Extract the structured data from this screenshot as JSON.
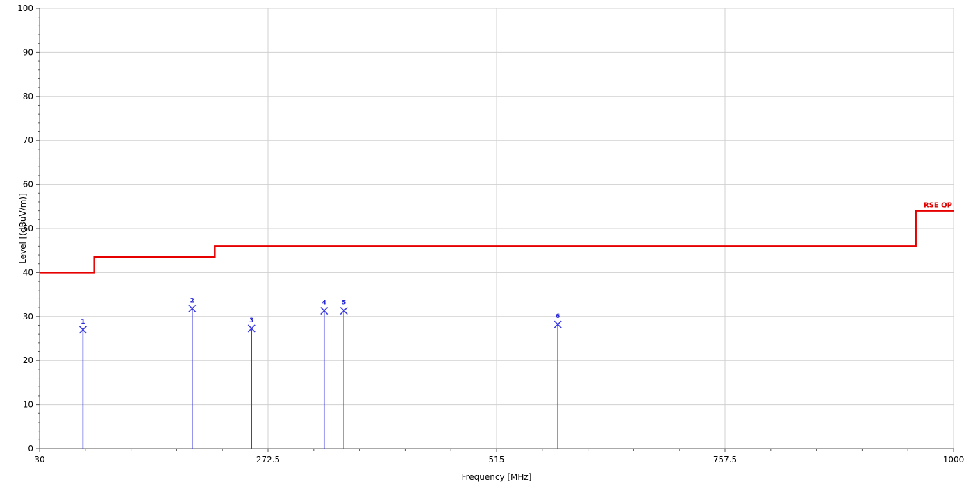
{
  "chart_data": {
    "type": "line",
    "title": "",
    "xlabel": "Frequency [MHz]",
    "ylabel": "Level [(dBuV/m)]",
    "xlim": [
      30,
      1000
    ],
    "ylim": [
      0,
      100
    ],
    "x_ticks": [
      30,
      272.5,
      515,
      757.5,
      1000
    ],
    "x_tick_labels": [
      "30",
      "272.5",
      "515",
      "757.5",
      "1000"
    ],
    "y_ticks": [
      0,
      10,
      20,
      30,
      40,
      50,
      60,
      70,
      80,
      90,
      100
    ],
    "y_tick_labels": [
      "0",
      "10",
      "20",
      "30",
      "40",
      "50",
      "60",
      "70",
      "80",
      "90",
      "100"
    ],
    "grid": true,
    "limit_line": {
      "name": "RSE QP",
      "color": "#e60000",
      "points": [
        [
          30,
          40
        ],
        [
          88,
          40
        ],
        [
          88,
          43.5
        ],
        [
          216,
          43.5
        ],
        [
          216,
          46
        ],
        [
          960,
          46
        ],
        [
          960,
          54
        ],
        [
          1000,
          54
        ]
      ]
    },
    "markers": {
      "color": "#3a3ae0",
      "points": [
        {
          "label": "1",
          "x": 76,
          "y": 27
        },
        {
          "label": "2",
          "x": 192,
          "y": 31.8
        },
        {
          "label": "3",
          "x": 255,
          "y": 27.3
        },
        {
          "label": "4",
          "x": 332,
          "y": 31.3
        },
        {
          "label": "5",
          "x": 353,
          "y": 31.3
        },
        {
          "label": "6",
          "x": 580,
          "y": 28.2
        }
      ]
    }
  }
}
